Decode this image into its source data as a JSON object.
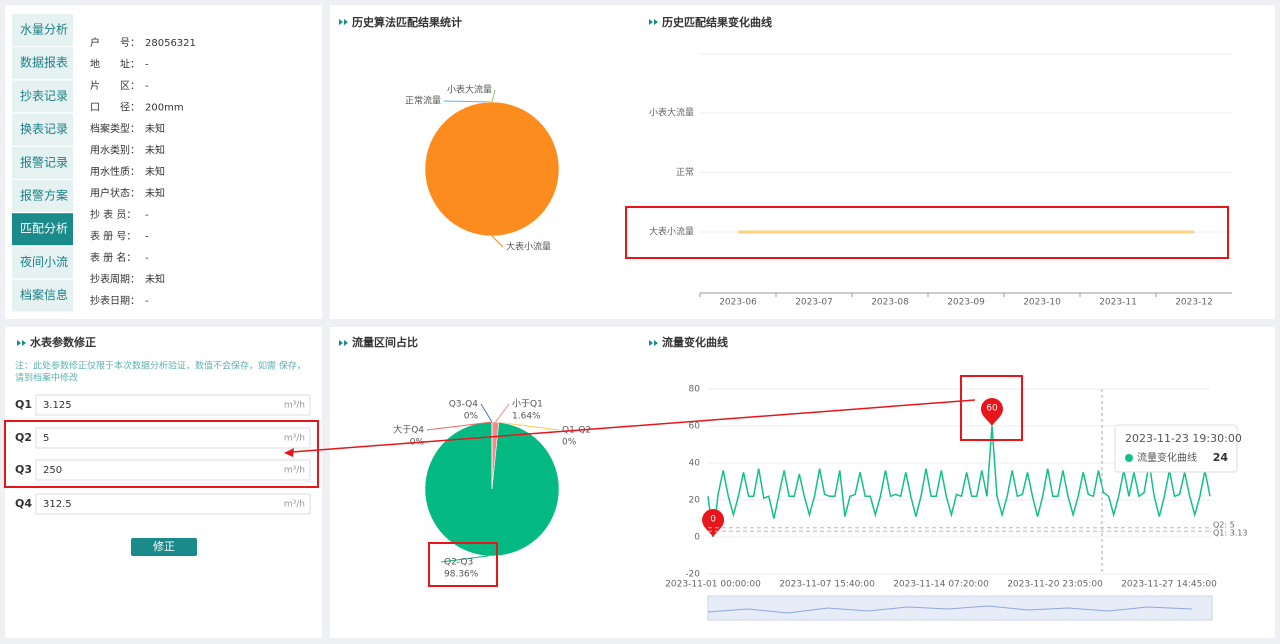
{
  "sidebar": {
    "tabs": [
      "水量分析",
      "数据报表",
      "抄表记录",
      "换表记录",
      "报警记录",
      "报警方案",
      "匹配分析",
      "夜间小流",
      "档案信息"
    ],
    "active": 6
  },
  "profile": {
    "rows": [
      [
        "户　　号：",
        "28056321"
      ],
      [
        "地　　址：",
        "-"
      ],
      [
        "片　　区：",
        "-"
      ],
      [
        "口　　径：",
        "200mm"
      ],
      [
        "档案类型：",
        "未知"
      ],
      [
        "用水类别：",
        "未知"
      ],
      [
        "用水性质：",
        "未知"
      ],
      [
        "用户状态：",
        "未知"
      ],
      [
        "抄 表 员：",
        "-"
      ],
      [
        "表 册 号：",
        "-"
      ],
      [
        "表 册 名：",
        "-"
      ],
      [
        "抄表周期：",
        "未知"
      ],
      [
        "抄表日期：",
        "-"
      ]
    ]
  },
  "params": {
    "title": "水表参数修正",
    "note": [
      "注：此处参数修正仅限于本次数据分析验证，数值不会保存，如需 保存，",
      "请到档案中修改"
    ],
    "fields": [
      {
        "label": "Q1",
        "value": 3.125
      },
      {
        "label": "Q2",
        "value": 5
      },
      {
        "label": "Q3",
        "value": 250
      },
      {
        "label": "Q4",
        "value": 312.5
      }
    ],
    "unit": "m³/h",
    "button": "修正"
  },
  "chart_data": [
    {
      "type": "pie",
      "title": "历史算法匹配结果统计",
      "categories": [
        "小表大流量",
        "正常流量",
        "大表小流量"
      ],
      "values": [
        0,
        0,
        100
      ],
      "colors": [
        "#91cc75",
        "#5ab1ef",
        "#fc8c1e"
      ]
    },
    {
      "type": "category-line",
      "title": "历史匹配结果变化曲线",
      "categories": [
        "2023-06",
        "2023-07",
        "2023-08",
        "2023-09",
        "2023-10",
        "2023-11",
        "2023-12"
      ],
      "ycategories": [
        "大表小流量",
        "正常",
        "小表大流量"
      ],
      "values": [
        0,
        0,
        0,
        0,
        0,
        0,
        0
      ],
      "color": "#fbd27f"
    },
    {
      "type": "pie",
      "title": "流量区间占比",
      "categories": [
        "小于Q1",
        "Q1-Q2",
        "Q2-Q3",
        "Q3-Q4",
        "大于Q4"
      ],
      "values": [
        1.64,
        0,
        98.36,
        0,
        0
      ],
      "value_labels": [
        "1.64%",
        "0%",
        "98.36%",
        "0%",
        "0%"
      ],
      "colors": [
        "#f28b8b",
        "#fac858",
        "#05b982",
        "#5470c6",
        "#ee6666"
      ]
    },
    {
      "type": "line",
      "title": "流量变化曲线",
      "xticks": [
        "2023-11-01 00:00:00",
        "2023-11-07 15:40:00",
        "2023-11-14 07:20:00",
        "2023-11-20 23:05:00",
        "2023-11-27 14:45:00"
      ],
      "ylim": [
        -20,
        80
      ],
      "yticks": [
        -20,
        0,
        20,
        40,
        60,
        80
      ],
      "grid": true,
      "series": [
        {
          "name": "流量变化曲线",
          "color": "#13c08a",
          "values": [
            22,
            0,
            23,
            36,
            22,
            12,
            22,
            35,
            22,
            22,
            37,
            21,
            22,
            10,
            23,
            36,
            22,
            22,
            34,
            22,
            12,
            22,
            37,
            23,
            22,
            22,
            36,
            11,
            22,
            23,
            35,
            22,
            22,
            12,
            22,
            36,
            22,
            23,
            22,
            35,
            22,
            11,
            22,
            37,
            22,
            22,
            36,
            22,
            12,
            23,
            22,
            35,
            22,
            22,
            36,
            22,
            60,
            22,
            12,
            22,
            36,
            22,
            23,
            35,
            22,
            11,
            22,
            37,
            22,
            22,
            36,
            22,
            12,
            22,
            35,
            23,
            22,
            36,
            24,
            22,
            12,
            22,
            36,
            22,
            35,
            22,
            24,
            40,
            22,
            11,
            22,
            36,
            22,
            23,
            35,
            22,
            12,
            22,
            36,
            22
          ]
        }
      ],
      "mark_points": [
        60,
        0
      ],
      "mark_lines": [
        {
          "value": 5,
          "label": "Q2: 5"
        },
        {
          "value": 3.125,
          "label": "Q1: 3.13"
        }
      ],
      "tooltip": {
        "time": "2023-11-23 19:30:00",
        "value": 24
      }
    }
  ]
}
